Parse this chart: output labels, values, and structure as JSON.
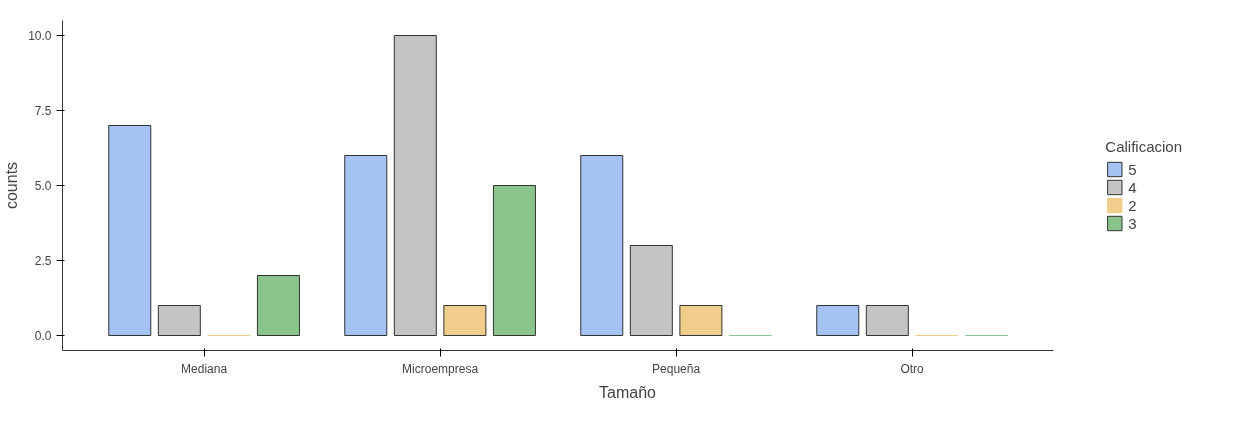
{
  "chart_data": {
    "type": "bar",
    "xlabel": "Tamaño",
    "ylabel": "counts",
    "legend_title": "Calificacion",
    "legend": "right",
    "categories": [
      "Mediana",
      "Microempresa",
      "Pequeña",
      "Otro"
    ],
    "series": [
      {
        "name": "5",
        "color": "#a4c3f2",
        "values": [
          7,
          6,
          6,
          1
        ]
      },
      {
        "name": "4",
        "color": "#c4c4c4",
        "values": [
          1,
          10,
          3,
          1
        ]
      },
      {
        "name": "2",
        "color": "#f0cd8a",
        "values": [
          0,
          1,
          1,
          0
        ]
      },
      {
        "name": "3",
        "color": "#8ac48a",
        "values": [
          2,
          5,
          0,
          0
        ]
      }
    ],
    "ylim": [
      -0.5,
      10.5
    ],
    "yticks": [
      {
        "value": 0,
        "label": "0.0"
      },
      {
        "value": 2.5,
        "label": "2.5"
      },
      {
        "value": 5,
        "label": "5.0"
      },
      {
        "value": 7.5,
        "label": "7.5"
      },
      {
        "value": 10,
        "label": "10.0"
      }
    ],
    "grid": false
  }
}
